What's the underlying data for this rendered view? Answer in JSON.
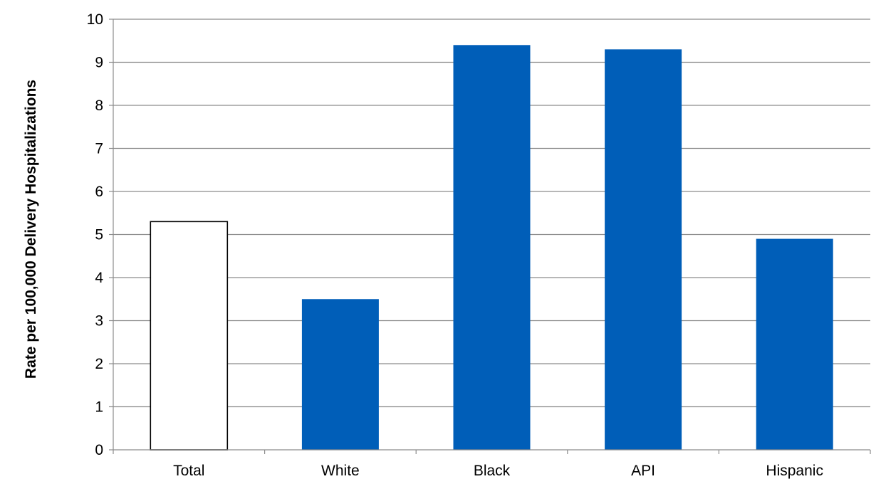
{
  "chart_data": {
    "type": "bar",
    "title": "",
    "xlabel": "",
    "ylabel": "Rate per 100,000 Delivery Hospitalizations",
    "categories": [
      "Total",
      "White",
      "Black",
      "API",
      "Hispanic"
    ],
    "values": [
      5.3,
      3.5,
      9.4,
      9.3,
      4.9
    ],
    "ylim": [
      0,
      10
    ],
    "yticks": [
      "0",
      "1",
      "2",
      "3",
      "4",
      "5",
      "6",
      "7",
      "8",
      "9",
      "10"
    ],
    "grid": true,
    "legend": "none",
    "bar_styles": [
      {
        "fill": "#ffffff",
        "stroke": "#000000"
      },
      {
        "fill": "#005eb8",
        "stroke": "none"
      },
      {
        "fill": "#005eb8",
        "stroke": "none"
      },
      {
        "fill": "#005eb8",
        "stroke": "none"
      },
      {
        "fill": "#005eb8",
        "stroke": "none"
      }
    ]
  },
  "colors": {
    "bar_primary": "#005eb8",
    "bar_total_fill": "#ffffff",
    "bar_total_outline": "#000000",
    "gridline": "#8c8c8c",
    "axis": "#8c8c8c"
  }
}
